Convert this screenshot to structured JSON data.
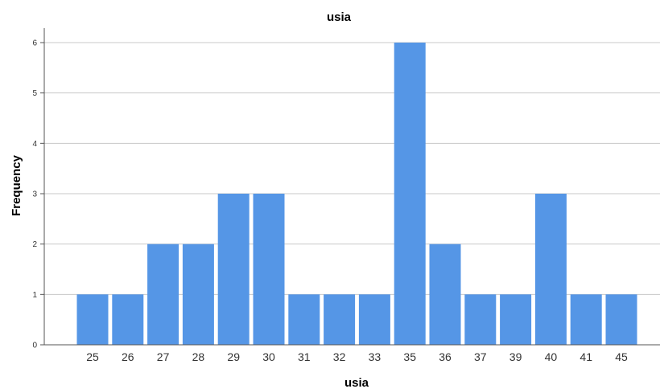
{
  "chart_data": {
    "type": "bar",
    "title": "usia",
    "xlabel": "usia",
    "ylabel": "Frequency",
    "categories": [
      "25",
      "26",
      "27",
      "28",
      "29",
      "30",
      "31",
      "32",
      "33",
      "35",
      "36",
      "37",
      "39",
      "40",
      "41",
      "45"
    ],
    "values": [
      1,
      1,
      2,
      2,
      3,
      3,
      1,
      1,
      1,
      6,
      2,
      1,
      1,
      3,
      1,
      1
    ],
    "ylim": [
      0,
      6
    ],
    "yticks": [
      "0",
      "1",
      "2",
      "3",
      "4",
      "5",
      "6"
    ],
    "grid": true,
    "bar_color": "#5596e6",
    "grid_color": "#c8c8c8"
  }
}
